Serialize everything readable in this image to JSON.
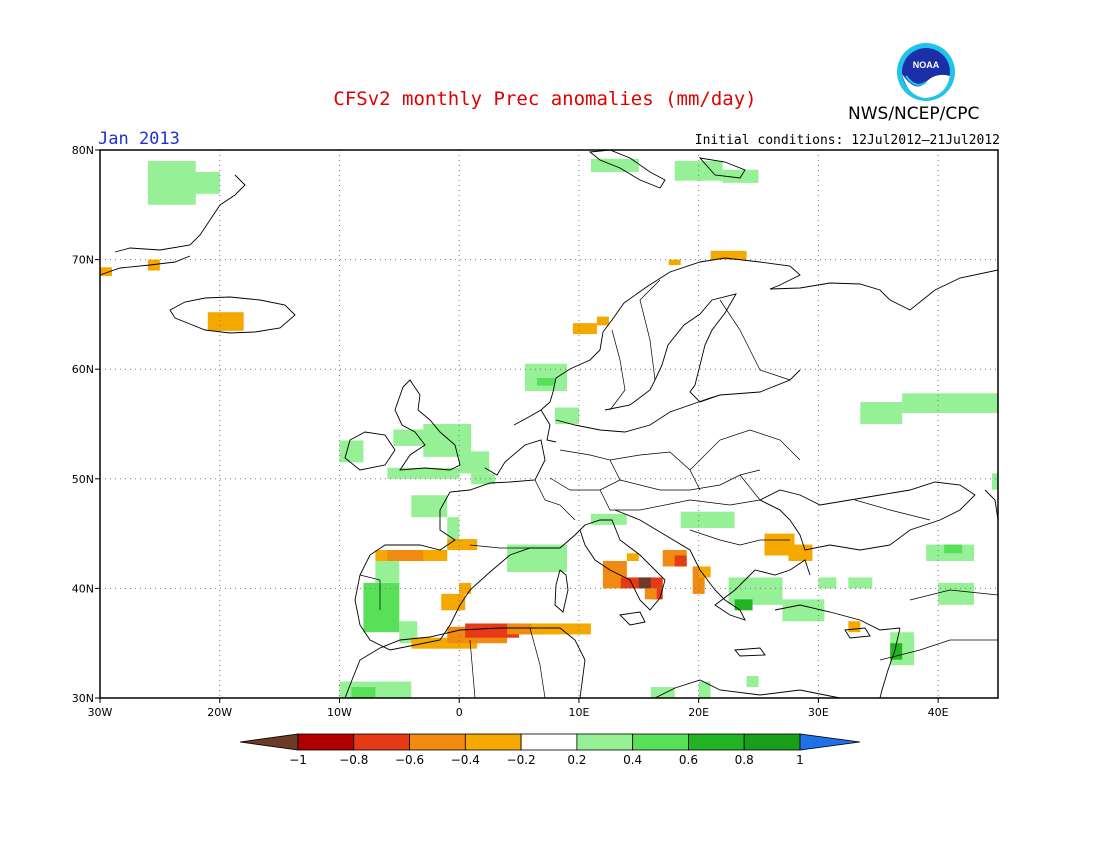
{
  "header": {
    "title": "CFSv2 monthly Prec anomalies (mm/day)",
    "organization": "NWS/NCEP/CPC",
    "month": "Jan 2013",
    "initial_conditions": "Initial conditions: 12Jul2012–21Jul2012",
    "logo_text": "NOAA"
  },
  "chart_data": {
    "type": "heatmap",
    "title": "CFSv2 monthly Prec anomalies (mm/day)",
    "lon_range": [
      -30,
      45
    ],
    "lat_range": [
      30,
      80
    ],
    "grid": "dotted",
    "x_ticks": [
      {
        "value": -30,
        "label": "30W"
      },
      {
        "value": -20,
        "label": "20W"
      },
      {
        "value": -10,
        "label": "10W"
      },
      {
        "value": 0,
        "label": "0"
      },
      {
        "value": 10,
        "label": "10E"
      },
      {
        "value": 20,
        "label": "20E"
      },
      {
        "value": 30,
        "label": "30E"
      },
      {
        "value": 40,
        "label": "40E"
      }
    ],
    "y_ticks": [
      {
        "value": 30,
        "label": "30N"
      },
      {
        "value": 40,
        "label": "40N"
      },
      {
        "value": 50,
        "label": "50N"
      },
      {
        "value": 60,
        "label": "60N"
      },
      {
        "value": 70,
        "label": "70N"
      },
      {
        "value": 80,
        "label": "80N"
      }
    ],
    "colorbar": {
      "levels": [
        -1,
        -0.8,
        -0.6,
        -0.4,
        -0.2,
        0.2,
        0.4,
        0.6,
        0.8,
        1
      ],
      "labels": [
        "−1",
        "−0.8",
        "−0.6",
        "−0.4",
        "−0.2",
        "0.2",
        "0.4",
        "0.6",
        "0.8",
        "1"
      ],
      "colors": [
        "#6b3a28",
        "#b00000",
        "#e63a14",
        "#f08a10",
        "#f5a800",
        "#ffffff",
        "#96f096",
        "#58e058",
        "#22b422",
        "#1a9e1a",
        "#2070e8"
      ]
    },
    "anomaly_cells": [
      {
        "lon0": -26,
        "lon1": -22,
        "lat0": 75,
        "lat1": 79,
        "v": 0.3
      },
      {
        "lon0": -23,
        "lon1": -20,
        "lat0": 76,
        "lat1": 78,
        "v": 0.3
      },
      {
        "lon0": -30,
        "lon1": -29,
        "lat0": 68.5,
        "lat1": 69.3,
        "v": -0.3
      },
      {
        "lon0": -26,
        "lon1": -25,
        "lat0": 69,
        "lat1": 70,
        "v": -0.3
      },
      {
        "lon0": -21,
        "lon1": -18,
        "lat0": 63.5,
        "lat1": 65.2,
        "v": -0.3
      },
      {
        "lon0": 11,
        "lon1": 15,
        "lat0": 78,
        "lat1": 79.2,
        "v": 0.3
      },
      {
        "lon0": 18,
        "lon1": 22,
        "lat0": 77.2,
        "lat1": 79,
        "v": 0.3
      },
      {
        "lon0": 22,
        "lon1": 25,
        "lat0": 77,
        "lat1": 78.2,
        "v": 0.3
      },
      {
        "lon0": 21,
        "lon1": 24,
        "lat0": 70,
        "lat1": 70.8,
        "v": -0.3
      },
      {
        "lon0": 17.5,
        "lon1": 18.5,
        "lat0": 69.5,
        "lat1": 70,
        "v": -0.3
      },
      {
        "lon0": 9.5,
        "lon1": 11.5,
        "lat0": 63.2,
        "lat1": 64.2,
        "v": -0.3
      },
      {
        "lon0": 11.5,
        "lon1": 12.5,
        "lat0": 64,
        "lat1": 64.8,
        "v": -0.3
      },
      {
        "lon0": 5.5,
        "lon1": 9,
        "lat0": 58,
        "lat1": 60.5,
        "v": 0.3
      },
      {
        "lon0": 6.5,
        "lon1": 8,
        "lat0": 58.5,
        "lat1": 59.2,
        "v": 0.5
      },
      {
        "lon0": 8,
        "lon1": 10,
        "lat0": 55,
        "lat1": 56.5,
        "v": 0.3
      },
      {
        "lon0": -3,
        "lon1": 1,
        "lat0": 52,
        "lat1": 55,
        "v": 0.3
      },
      {
        "lon0": -5.5,
        "lon1": -2,
        "lat0": 53,
        "lat1": 54.5,
        "v": 0.3
      },
      {
        "lon0": -10,
        "lon1": -8,
        "lat0": 51.5,
        "lat1": 53.5,
        "v": 0.3
      },
      {
        "lon0": 0,
        "lon1": 2.5,
        "lat0": 50.5,
        "lat1": 52.5,
        "v": 0.3
      },
      {
        "lon0": 1,
        "lon1": 3,
        "lat0": 49.5,
        "lat1": 50.5,
        "v": 0.3
      },
      {
        "lon0": -6,
        "lon1": 0,
        "lat0": 50,
        "lat1": 51,
        "v": 0.3
      },
      {
        "lon0": -4,
        "lon1": -1,
        "lat0": 46.5,
        "lat1": 48.5,
        "v": 0.3
      },
      {
        "lon0": -1,
        "lon1": 0,
        "lat0": 44,
        "lat1": 46.5,
        "v": 0.3
      },
      {
        "lon0": 4,
        "lon1": 9,
        "lat0": 41.5,
        "lat1": 44,
        "v": 0.3
      },
      {
        "lon0": 11,
        "lon1": 14,
        "lat0": 45.8,
        "lat1": 46.8,
        "v": 0.3
      },
      {
        "lon0": 18.5,
        "lon1": 23,
        "lat0": 45.5,
        "lat1": 47,
        "v": 0.3
      },
      {
        "lon0": 22.5,
        "lon1": 27,
        "lat0": 38.5,
        "lat1": 41,
        "v": 0.3
      },
      {
        "lon0": 23,
        "lon1": 24.5,
        "lat0": 38,
        "lat1": 39,
        "v": 0.6
      },
      {
        "lon0": 27,
        "lon1": 30.5,
        "lat0": 37,
        "lat1": 39,
        "v": 0.3
      },
      {
        "lon0": 30,
        "lon1": 31.5,
        "lat0": 40,
        "lat1": 41,
        "v": 0.3
      },
      {
        "lon0": 32.5,
        "lon1": 34.5,
        "lat0": 40,
        "lat1": 41,
        "v": 0.3
      },
      {
        "lon0": 40,
        "lon1": 43,
        "lat0": 38.5,
        "lat1": 40.5,
        "v": 0.3
      },
      {
        "lon0": 39,
        "lon1": 43,
        "lat0": 42.5,
        "lat1": 44,
        "v": 0.3
      },
      {
        "lon0": 40.5,
        "lon1": 42,
        "lat0": 43.2,
        "lat1": 44,
        "v": 0.5
      },
      {
        "lon0": 33.5,
        "lon1": 37,
        "lat0": 55,
        "lat1": 57,
        "v": 0.3
      },
      {
        "lon0": 37,
        "lon1": 45,
        "lat0": 56,
        "lat1": 57.8,
        "v": 0.3
      },
      {
        "lon0": 44.5,
        "lon1": 45,
        "lat0": 49,
        "lat1": 50.5,
        "v": 0.3
      },
      {
        "lon0": 36,
        "lon1": 38,
        "lat0": 33,
        "lat1": 36,
        "v": 0.3
      },
      {
        "lon0": 36,
        "lon1": 37,
        "lat0": 33.5,
        "lat1": 35,
        "v": 0.7
      },
      {
        "lon0": -8,
        "lon1": -5,
        "lat0": 36,
        "lat1": 40.5,
        "v": 0.5
      },
      {
        "lon0": -7,
        "lon1": -5,
        "lat0": 40.5,
        "lat1": 42.5,
        "v": 0.3
      },
      {
        "lon0": -5,
        "lon1": -3.5,
        "lat0": 35,
        "lat1": 37,
        "v": 0.3
      },
      {
        "lon0": -10,
        "lon1": -4,
        "lat0": 30,
        "lat1": 31.5,
        "v": 0.3
      },
      {
        "lon0": -9,
        "lon1": -7,
        "lat0": 30,
        "lat1": 31,
        "v": 0.5
      },
      {
        "lon0": 16,
        "lon1": 18,
        "lat0": 30,
        "lat1": 31,
        "v": 0.3
      },
      {
        "lon0": 20,
        "lon1": 21,
        "lat0": 30,
        "lat1": 31.5,
        "v": 0.3
      },
      {
        "lon0": 24,
        "lon1": 25,
        "lat0": 31,
        "lat1": 32,
        "v": 0.3
      },
      {
        "lon0": -7,
        "lon1": -1,
        "lat0": 42.5,
        "lat1": 43.5,
        "v": -0.4
      },
      {
        "lon0": -6,
        "lon1": -3,
        "lat0": 42.5,
        "lat1": 43.5,
        "v": -0.6
      },
      {
        "lon0": -1,
        "lon1": 1.5,
        "lat0": 43.5,
        "lat1": 44.5,
        "v": -0.3
      },
      {
        "lon0": -1.5,
        "lon1": 0.5,
        "lat0": 38,
        "lat1": 39.5,
        "v": -0.3
      },
      {
        "lon0": 0,
        "lon1": 1,
        "lat0": 39.5,
        "lat1": 40.5,
        "v": -0.3
      },
      {
        "lon0": -4,
        "lon1": 1.5,
        "lat0": 34.5,
        "lat1": 35.5,
        "v": -0.3
      },
      {
        "lon0": -1,
        "lon1": 4,
        "lat0": 35,
        "lat1": 36.5,
        "v": -0.6
      },
      {
        "lon0": 0.5,
        "lon1": 5,
        "lat0": 35.5,
        "lat1": 36.8,
        "v": -0.8
      },
      {
        "lon0": 4,
        "lon1": 7,
        "lat0": 35.8,
        "lat1": 36.8,
        "v": -0.6
      },
      {
        "lon0": 6,
        "lon1": 11,
        "lat0": 35.8,
        "lat1": 36.8,
        "v": -0.4
      },
      {
        "lon0": 12,
        "lon1": 14,
        "lat0": 40,
        "lat1": 42.5,
        "v": -0.6
      },
      {
        "lon0": 13.5,
        "lon1": 17,
        "lat0": 40,
        "lat1": 41,
        "v": -0.8
      },
      {
        "lon0": 15,
        "lon1": 16,
        "lat0": 40,
        "lat1": 41,
        "v": -1
      },
      {
        "lon0": 16,
        "lon1": 17,
        "lat0": 39,
        "lat1": 40,
        "v": -0.8
      },
      {
        "lon0": 15.5,
        "lon1": 16.5,
        "lat0": 39,
        "lat1": 40,
        "v": -0.6
      },
      {
        "lon0": 17,
        "lon1": 19,
        "lat0": 42,
        "lat1": 43.5,
        "v": -0.6
      },
      {
        "lon0": 18,
        "lon1": 19,
        "lat0": 42,
        "lat1": 43,
        "v": -0.8
      },
      {
        "lon0": 19.5,
        "lon1": 20.5,
        "lat0": 39.5,
        "lat1": 42,
        "v": -0.6
      },
      {
        "lon0": 20,
        "lon1": 21,
        "lat0": 41,
        "lat1": 42,
        "v": -0.3
      },
      {
        "lon0": 25.5,
        "lon1": 28,
        "lat0": 43,
        "lat1": 45,
        "v": -0.3
      },
      {
        "lon0": 27.5,
        "lon1": 29.5,
        "lat0": 42.5,
        "lat1": 44,
        "v": -0.3
      },
      {
        "lon0": 32.5,
        "lon1": 33.5,
        "lat0": 36,
        "lat1": 37,
        "v": -0.3
      },
      {
        "lon0": 14,
        "lon1": 15,
        "lat0": 42.5,
        "lat1": 43.2,
        "v": -0.3
      }
    ]
  }
}
